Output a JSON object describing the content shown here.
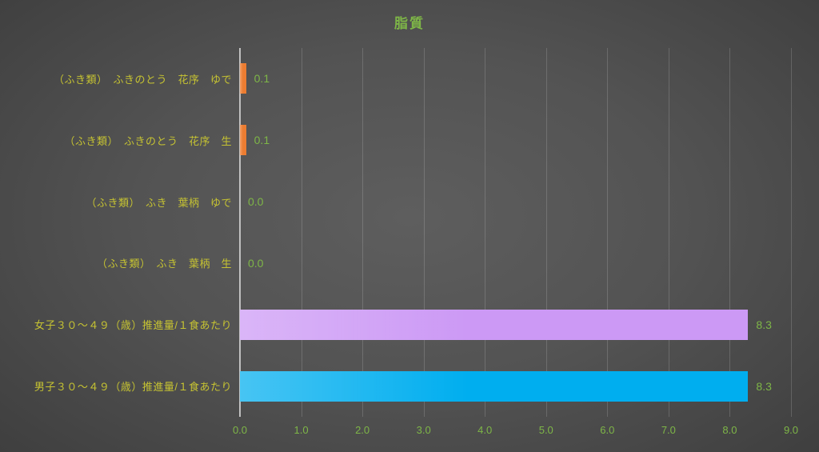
{
  "chart_data": {
    "type": "bar",
    "orientation": "horizontal",
    "title": "脂質",
    "categories": [
      "（ふき類）　ふきのとう　花序　ゆで",
      "（ふき類）　ふきのとう　花序　生",
      "（ふき類）　ふき　葉柄　ゆで",
      "（ふき類）　ふき　葉柄　生",
      "女子３０～４９（歳）推進量/１食あたり",
      "男子３０～４９（歳）推進量/１食あたり"
    ],
    "values": [
      0.1,
      0.1,
      0.0,
      0.0,
      8.3,
      8.3
    ],
    "value_labels": [
      "0.1",
      "0.1",
      "0.0",
      "0.0",
      "8.3",
      "8.3"
    ],
    "bar_colors": [
      "#ED7D31",
      "#ED7D31",
      "#ED7D31",
      "#ED7D31",
      "#CC99F5",
      "#00AEEF"
    ],
    "xlim": [
      0,
      9
    ],
    "x_ticks": [
      "0.0",
      "1.0",
      "2.0",
      "3.0",
      "4.0",
      "5.0",
      "6.0",
      "7.0",
      "8.0",
      "9.0"
    ],
    "grid": true,
    "legend": "none",
    "colors": {
      "title": "#7EB647",
      "category_label": "#C6C332",
      "value_label": "#7EB647",
      "axis_tick_label": "#7EB647",
      "axis_line": "#C0C0C0",
      "gridline": "rgba(255,255,255,0.16)",
      "background_center": "#5E5E5E",
      "background_edge": "#262626"
    }
  }
}
